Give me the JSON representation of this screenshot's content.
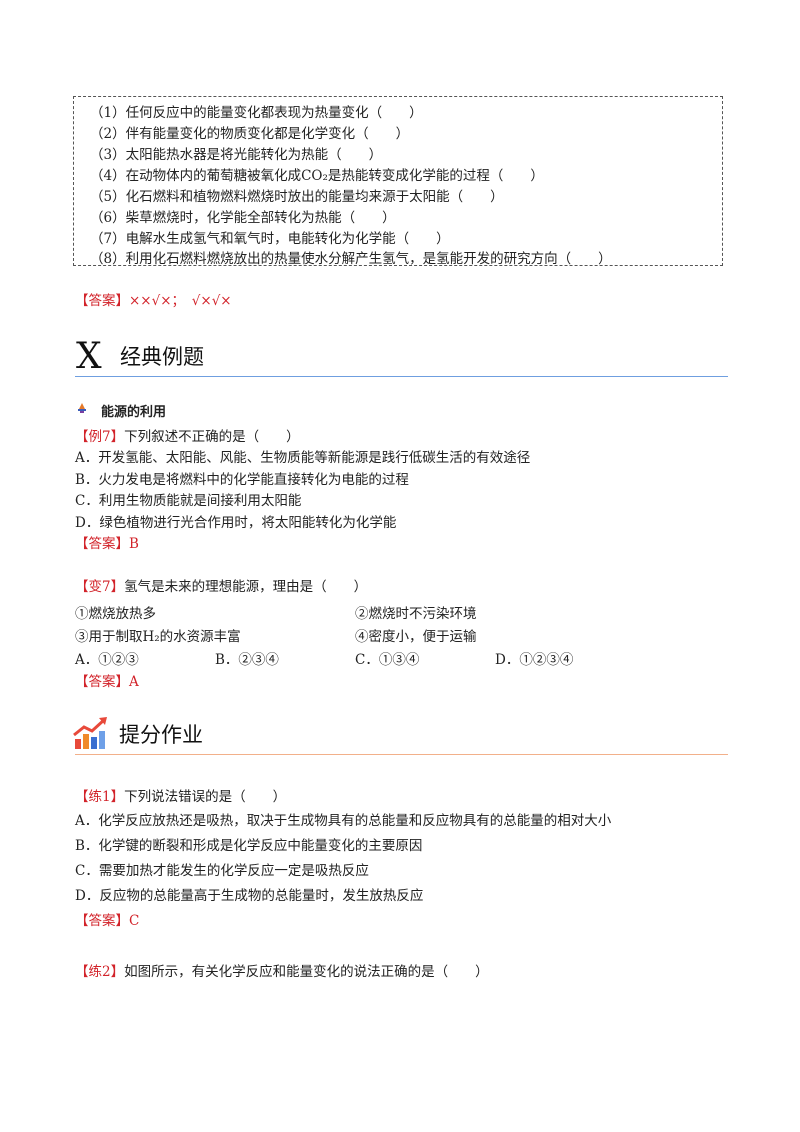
{
  "quiz_box": {
    "items": [
      "（1）任何反应中的能量变化都表现为热量变化（　　）",
      "（2）伴有能量变化的物质变化都是化学变化（　　）",
      "（3）太阳能热水器是将光能转化为热能（　　）",
      "（4）在动物体内的葡萄糖被氧化成CO₂是热能转变成化学能的过程（　　）",
      "（5）化石燃料和植物燃料燃烧时放出的能量均来源于太阳能（　　）",
      "（6）柴草燃烧时，化学能全部转化为热能（　　）",
      "（7）电解水生成氢气和氧气时，电能转化为化学能（　　）",
      "（8）利用化石燃料燃烧放出的热量使水分解产生氢气，是氢能开发的研究方向（　　）"
    ]
  },
  "answer_1": {
    "label": "【答案】",
    "text": "××√×；　√×√×"
  },
  "section_1": {
    "letter": "X",
    "title": "经典例题"
  },
  "subsection": {
    "title": "能源的利用"
  },
  "example_7": {
    "tag": "【例7】",
    "stem": "下列叙述不正确的是（　　）",
    "options": [
      "A．开发氢能、太阳能、风能、生物质能等新能源是践行低碳生活的有效途径",
      "B．火力发电是将燃料中的化学能直接转化为电能的过程",
      "C．利用生物质能就是间接利用太阳能",
      "D．绿色植物进行光合作用时，将太阳能转化为化学能"
    ],
    "answer_label": "【答案】",
    "answer": "B"
  },
  "variant_7": {
    "tag": "【变7】",
    "stem": "氢气是未来的理想能源，理由是（　　）",
    "reasons": [
      "①燃烧放热多",
      "②燃烧时不污染环境",
      "③用于制取H₂的水资源丰富",
      "④密度小，便于运输"
    ],
    "options": [
      "A．①②③",
      "B．②③④",
      "C．①③④",
      "D．①②③④"
    ],
    "answer_label": "【答案】",
    "answer": "A"
  },
  "section_2": {
    "title": "提分作业"
  },
  "practice_1": {
    "tag": "【练1】",
    "stem": "下列说法错误的是（　　）",
    "options": [
      "A．化学反应放热还是吸热，取决于生成物具有的总能量和反应物具有的总能量的相对大小",
      "B．化学键的断裂和形成是化学反应中能量变化的主要原因",
      "C．需要加热才能发生的化学反应一定是吸热反应",
      "D．反应物的总能量高于生成物的总能量时，发生放热反应"
    ],
    "answer_label": "【答案】",
    "answer": "C"
  },
  "practice_2": {
    "tag": "【练2】",
    "stem": "如图所示，有关化学反应和能量变化的说法正确的是（　　）"
  },
  "colors": {
    "accent_red": "#d2232a",
    "rule_blue": "#6f9fe0",
    "rule_orange": "#f2b08a"
  }
}
